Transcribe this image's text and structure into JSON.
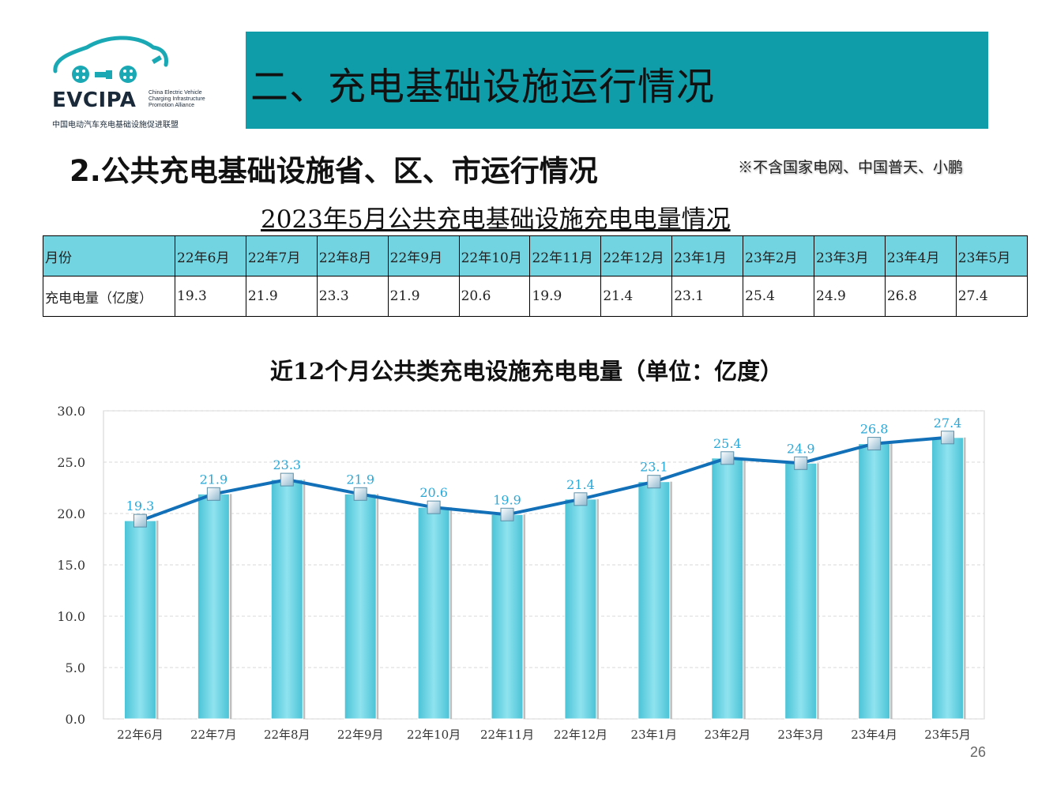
{
  "logo": {
    "name": "EVCIPA",
    "english": [
      "China Electric Vehicle",
      "Charging Infrastructure",
      "Promotion Alliance"
    ],
    "chinese": "中国电动汽车充电基础设施促进联盟"
  },
  "banner": {
    "title": "二、充电基础设施运行情况",
    "color": "#0f9ea9"
  },
  "subtitle": "2.公共充电基础设施省、区、市运行情况",
  "note": "※不含国家电网、中国普天、小鹏",
  "table": {
    "title": "2023年5月公共充电基础设施充电电量情况",
    "header_label": "月份",
    "row_label": "充电电量（亿度）",
    "months": [
      "22年6月",
      "22年7月",
      "22年8月",
      "22年9月",
      "22年10月",
      "22年11月",
      "22年12月",
      "23年1月",
      "23年2月",
      "23年3月",
      "23年4月",
      "23年5月"
    ],
    "values": [
      "19.3",
      "21.9",
      "23.3",
      "21.9",
      "20.6",
      "19.9",
      "21.4",
      "23.1",
      "25.4",
      "24.9",
      "26.8",
      "27.4"
    ],
    "header_color": "#73d4e1"
  },
  "chart_data": {
    "type": "bar",
    "title": "近12个月公共类充电设施充电电量（单位：亿度）",
    "categories": [
      "22年6月",
      "22年7月",
      "22年8月",
      "22年9月",
      "22年10月",
      "22年11月",
      "22年12月",
      "23年1月",
      "23年2月",
      "23年3月",
      "23年4月",
      "23年5月"
    ],
    "series": [
      {
        "kind": "bar",
        "values": [
          19.3,
          21.9,
          23.3,
          21.9,
          20.6,
          19.9,
          21.4,
          23.1,
          25.4,
          24.9,
          26.8,
          27.4
        ],
        "color": "#6fd3e3"
      },
      {
        "kind": "line",
        "values": [
          19.3,
          21.9,
          23.3,
          21.9,
          20.6,
          19.9,
          21.4,
          23.1,
          25.4,
          24.9,
          26.8,
          27.4
        ],
        "color": "#1270b8"
      }
    ],
    "data_labels": [
      "19.3",
      "21.9",
      "23.3",
      "21.9",
      "20.6",
      "19.9",
      "21.4",
      "23.1",
      "25.4",
      "24.9",
      "26.8",
      "27.4"
    ],
    "yticks": [
      "0.0",
      "5.0",
      "10.0",
      "15.0",
      "20.0",
      "25.0",
      "30.0"
    ],
    "ylim": [
      0,
      30
    ],
    "grid": true,
    "legend": "none"
  },
  "page_number": "26"
}
